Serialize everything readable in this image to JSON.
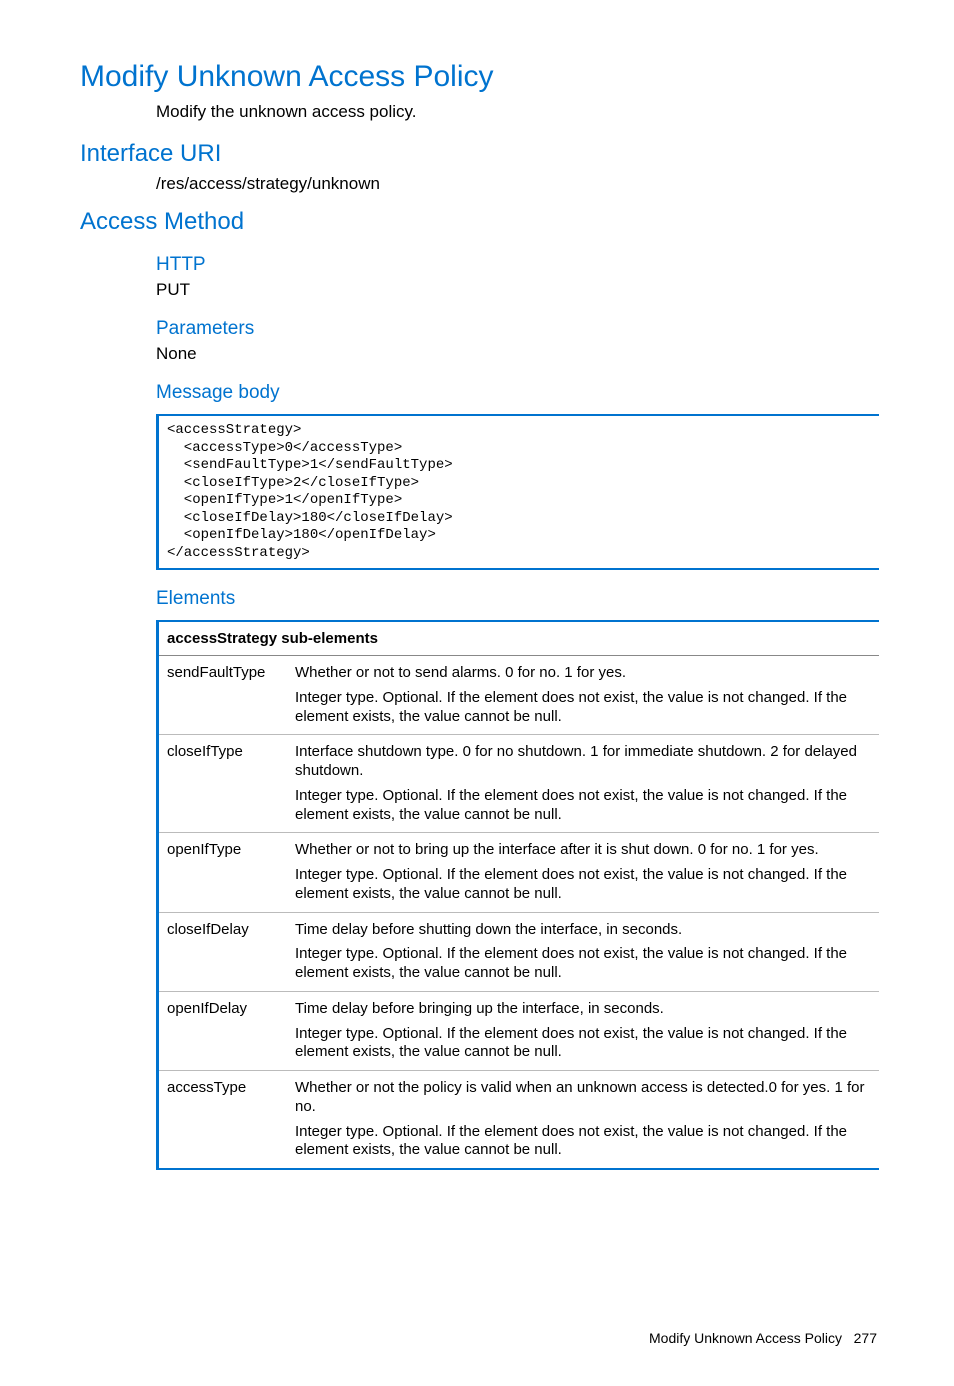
{
  "title": "Modify Unknown Access Policy",
  "description": "Modify the unknown access policy.",
  "interface_uri_heading": "Interface URI",
  "interface_uri": "/res/access/strategy/unknown",
  "access_method_heading": "Access Method",
  "http_heading": "HTTP",
  "http_method": "PUT",
  "parameters_heading": "Parameters",
  "parameters_value": "None",
  "message_body_heading": "Message body",
  "code": "<accessStrategy>\n  <accessType>0</accessType>\n  <sendFaultType>1</sendFaultType>\n  <closeIfType>2</closeIfType>\n  <openIfType>1</openIfType>\n  <closeIfDelay>180</closeIfDelay>\n  <openIfDelay>180</openIfDelay>\n</accessStrategy>",
  "elements_heading": "Elements",
  "table_header": "accessStrategy sub-elements",
  "optional_note": "Integer type. Optional. If the element does not exist, the value is not changed. If the element exists, the value cannot be null.",
  "rows": [
    {
      "name": "sendFaultType",
      "desc": "Whether or not to send alarms. 0 for no. 1 for yes."
    },
    {
      "name": "closeIfType",
      "desc": "Interface shutdown type. 0 for no shutdown. 1 for immediate shutdown. 2 for delayed shutdown."
    },
    {
      "name": "openIfType",
      "desc": "Whether or not to bring up the interface after it is shut down. 0 for no. 1 for yes."
    },
    {
      "name": "closeIfDelay",
      "desc": "Time delay before shutting down the interface, in seconds."
    },
    {
      "name": "openIfDelay",
      "desc": "Time delay before bringing up the interface, in seconds."
    },
    {
      "name": "accessType",
      "desc": "Whether or not the policy is valid when an unknown access is detected.0 for yes. 1 for no."
    }
  ],
  "footer_title": "Modify Unknown Access Policy",
  "footer_page": "277",
  "colors": {
    "heading": "#0073cf",
    "border": "#0073cf",
    "text": "#000000",
    "background": "#ffffff"
  }
}
